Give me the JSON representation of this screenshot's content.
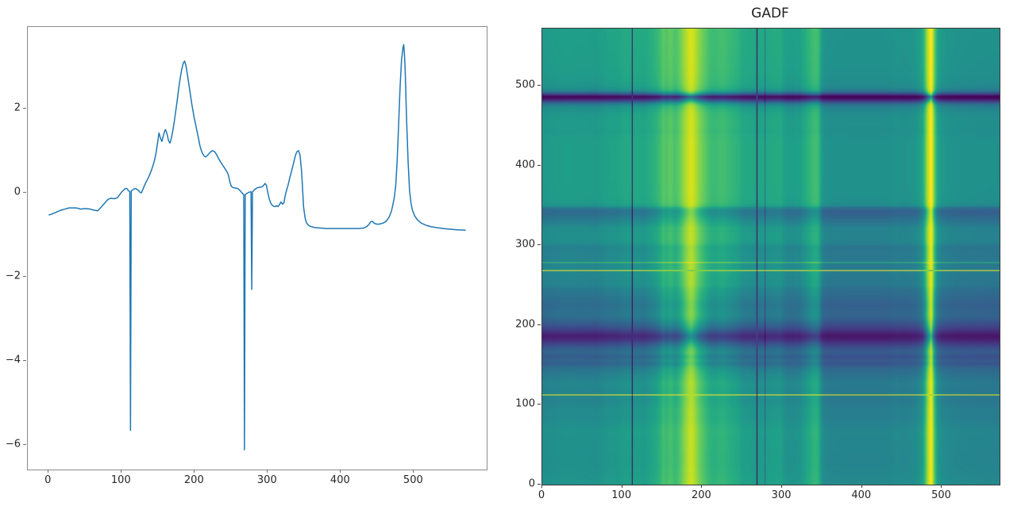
{
  "figure": {
    "background": "#ffffff",
    "spine_color_left_plot": "#8a8a8a",
    "spine_color_gadf_plot": "#3a3a3a",
    "tick_label_color": "#262626"
  },
  "gadf": {
    "title": "GADF"
  },
  "chart_data": [
    {
      "type": "line",
      "title": "",
      "xlabel": "",
      "ylabel": "",
      "line_color": "#1f77b4",
      "x_ticks": [
        0,
        100,
        200,
        300,
        400,
        500
      ],
      "y_ticks": [
        2,
        0,
        -2,
        -4,
        -6
      ],
      "xlim": [
        -28.6,
        599.6
      ],
      "ylim": [
        -6.58,
        3.94
      ],
      "grid": false,
      "legend": "none",
      "n_points": 572,
      "points": [
        [
          0,
          -0.53
        ],
        [
          4,
          -0.51
        ],
        [
          8,
          -0.48
        ],
        [
          12,
          -0.45
        ],
        [
          16,
          -0.42
        ],
        [
          20,
          -0.4
        ],
        [
          24,
          -0.38
        ],
        [
          28,
          -0.36
        ],
        [
          33,
          -0.36
        ],
        [
          37,
          -0.36
        ],
        [
          40,
          -0.37
        ],
        [
          44,
          -0.39
        ],
        [
          48,
          -0.38
        ],
        [
          53,
          -0.38
        ],
        [
          57,
          -0.39
        ],
        [
          61,
          -0.41
        ],
        [
          64,
          -0.42
        ],
        [
          67,
          -0.43
        ],
        [
          70,
          -0.38
        ],
        [
          73,
          -0.32
        ],
        [
          76,
          -0.26
        ],
        [
          79,
          -0.2
        ],
        [
          82,
          -0.15
        ],
        [
          85,
          -0.13
        ],
        [
          88,
          -0.14
        ],
        [
          91,
          -0.14
        ],
        [
          94,
          -0.12
        ],
        [
          97,
          -0.05
        ],
        [
          100,
          0.02
        ],
        [
          103,
          0.07
        ],
        [
          105,
          0.1
        ],
        [
          107,
          0.1
        ],
        [
          109,
          0.05
        ],
        [
          111,
          0.03
        ],
        [
          112,
          -5.65
        ],
        [
          113,
          0.04
        ],
        [
          115,
          0.07
        ],
        [
          117,
          0.09
        ],
        [
          119,
          0.1
        ],
        [
          121,
          0.08
        ],
        [
          123,
          0.05
        ],
        [
          125,
          0.01
        ],
        [
          127,
          0.0
        ],
        [
          129,
          0.08
        ],
        [
          131,
          0.17
        ],
        [
          133,
          0.24
        ],
        [
          135,
          0.31
        ],
        [
          137,
          0.38
        ],
        [
          139,
          0.46
        ],
        [
          141,
          0.55
        ],
        [
          143,
          0.66
        ],
        [
          145,
          0.78
        ],
        [
          147,
          0.95
        ],
        [
          149,
          1.18
        ],
        [
          151,
          1.42
        ],
        [
          153,
          1.3
        ],
        [
          155,
          1.22
        ],
        [
          157,
          1.36
        ],
        [
          159,
          1.48
        ],
        [
          160,
          1.5
        ],
        [
          162,
          1.4
        ],
        [
          164,
          1.24
        ],
        [
          166,
          1.18
        ],
        [
          168,
          1.3
        ],
        [
          170,
          1.48
        ],
        [
          172,
          1.7
        ],
        [
          174,
          1.95
        ],
        [
          176,
          2.2
        ],
        [
          178,
          2.48
        ],
        [
          180,
          2.72
        ],
        [
          182,
          2.92
        ],
        [
          184,
          3.07
        ],
        [
          186,
          3.13
        ],
        [
          188,
          3.02
        ],
        [
          190,
          2.8
        ],
        [
          193,
          2.45
        ],
        [
          196,
          2.1
        ],
        [
          199,
          1.8
        ],
        [
          202,
          1.55
        ],
        [
          205,
          1.3
        ],
        [
          207,
          1.12
        ],
        [
          209,
          1.0
        ],
        [
          211,
          0.92
        ],
        [
          213,
          0.87
        ],
        [
          215,
          0.85
        ],
        [
          218,
          0.9
        ],
        [
          221,
          0.96
        ],
        [
          224,
          1.0
        ],
        [
          227,
          0.98
        ],
        [
          229,
          0.93
        ],
        [
          232,
          0.83
        ],
        [
          235,
          0.74
        ],
        [
          238,
          0.66
        ],
        [
          241,
          0.58
        ],
        [
          244,
          0.5
        ],
        [
          246,
          0.42
        ],
        [
          248,
          0.26
        ],
        [
          250,
          0.15
        ],
        [
          253,
          0.12
        ],
        [
          256,
          0.11
        ],
        [
          259,
          0.1
        ],
        [
          262,
          0.05
        ],
        [
          264,
          0.01
        ],
        [
          266,
          -0.03
        ],
        [
          267,
          -0.04
        ],
        [
          268,
          -6.11
        ],
        [
          269,
          -0.05
        ],
        [
          270,
          -0.03
        ],
        [
          272,
          -0.01
        ],
        [
          274,
          0.01
        ],
        [
          276,
          0.02
        ],
        [
          277,
          0.02
        ],
        [
          278,
          -2.3
        ],
        [
          279,
          0.02
        ],
        [
          281,
          0.06
        ],
        [
          283,
          0.09
        ],
        [
          286,
          0.12
        ],
        [
          289,
          0.13
        ],
        [
          292,
          0.14
        ],
        [
          295,
          0.19
        ],
        [
          296,
          0.22
        ],
        [
          298,
          0.18
        ],
        [
          300,
          0.0
        ],
        [
          302,
          -0.15
        ],
        [
          304,
          -0.25
        ],
        [
          306,
          -0.3
        ],
        [
          308,
          -0.32
        ],
        [
          310,
          -0.33
        ],
        [
          312,
          -0.31
        ],
        [
          314,
          -0.33
        ],
        [
          316,
          -0.28
        ],
        [
          318,
          -0.22
        ],
        [
          320,
          -0.27
        ],
        [
          322,
          -0.24
        ],
        [
          324,
          -0.05
        ],
        [
          326,
          0.08
        ],
        [
          328,
          0.2
        ],
        [
          330,
          0.35
        ],
        [
          332,
          0.48
        ],
        [
          334,
          0.62
        ],
        [
          336,
          0.76
        ],
        [
          338,
          0.9
        ],
        [
          340,
          0.98
        ],
        [
          342,
          1.0
        ],
        [
          344,
          0.9
        ],
        [
          346,
          0.55
        ],
        [
          347,
          0.27
        ],
        [
          348,
          -0.05
        ],
        [
          349,
          -0.35
        ],
        [
          351,
          -0.6
        ],
        [
          353,
          -0.72
        ],
        [
          356,
          -0.78
        ],
        [
          360,
          -0.81
        ],
        [
          365,
          -0.83
        ],
        [
          372,
          -0.84
        ],
        [
          380,
          -0.85
        ],
        [
          395,
          -0.85
        ],
        [
          410,
          -0.85
        ],
        [
          425,
          -0.85
        ],
        [
          431,
          -0.84
        ],
        [
          435,
          -0.81
        ],
        [
          438,
          -0.76
        ],
        [
          441,
          -0.69
        ],
        [
          443,
          -0.68
        ],
        [
          446,
          -0.73
        ],
        [
          450,
          -0.75
        ],
        [
          454,
          -0.74
        ],
        [
          458,
          -0.72
        ],
        [
          462,
          -0.68
        ],
        [
          466,
          -0.58
        ],
        [
          469,
          -0.45
        ],
        [
          471,
          -0.3
        ],
        [
          473,
          -0.12
        ],
        [
          475,
          0.15
        ],
        [
          477,
          0.75
        ],
        [
          479,
          1.6
        ],
        [
          481,
          2.5
        ],
        [
          483,
          3.15
        ],
        [
          485,
          3.45
        ],
        [
          486,
          3.52
        ],
        [
          487,
          3.3
        ],
        [
          488,
          2.92
        ],
        [
          490,
          1.7
        ],
        [
          492,
          0.75
        ],
        [
          494,
          0.05
        ],
        [
          496,
          -0.25
        ],
        [
          498,
          -0.42
        ],
        [
          501,
          -0.55
        ],
        [
          505,
          -0.65
        ],
        [
          510,
          -0.72
        ],
        [
          516,
          -0.77
        ],
        [
          524,
          -0.81
        ],
        [
          535,
          -0.84
        ],
        [
          545,
          -0.86
        ],
        [
          558,
          -0.88
        ],
        [
          571,
          -0.89
        ]
      ]
    },
    {
      "type": "heatmap",
      "title": "GADF",
      "colormap": "viridis",
      "x_ticks": [
        0,
        100,
        200,
        300,
        400,
        500
      ],
      "y_ticks": [
        0,
        100,
        200,
        300,
        400,
        500
      ],
      "extent": [
        0,
        572
      ],
      "value_range": [
        -1,
        1
      ],
      "origin": "lower",
      "derived_from": "Gramian Angular Difference Field of the line series: G[i][j] = sin(phi_i - phi_j), phi = arccos(min-max scaled series to [-1,1])",
      "viridis_anchors": [
        [
          68,
          1,
          84
        ],
        [
          72,
          24,
          106
        ],
        [
          71,
          45,
          123
        ],
        [
          66,
          64,
          134
        ],
        [
          59,
          82,
          139
        ],
        [
          51,
          99,
          141
        ],
        [
          44,
          114,
          142
        ],
        [
          38,
          130,
          142
        ],
        [
          33,
          145,
          140
        ],
        [
          31,
          160,
          136
        ],
        [
          40,
          174,
          128
        ],
        [
          63,
          188,
          115
        ],
        [
          94,
          201,
          98
        ],
        [
          132,
          212,
          75
        ],
        [
          173,
          220,
          48
        ],
        [
          216,
          226,
          25
        ],
        [
          253,
          231,
          37
        ]
      ]
    }
  ]
}
